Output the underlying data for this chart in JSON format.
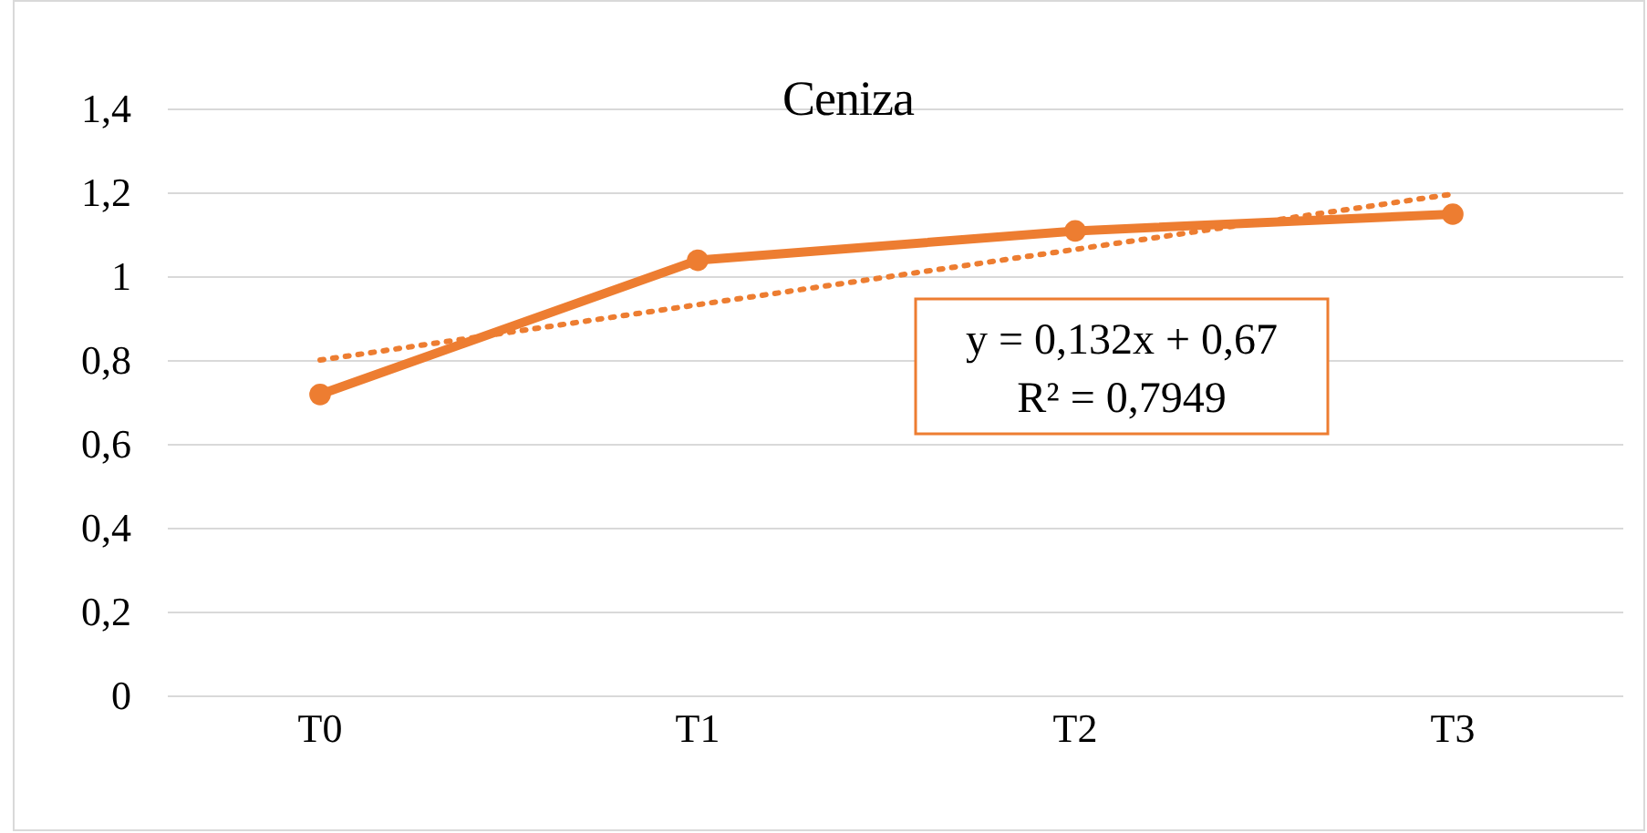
{
  "chart_data": {
    "type": "line",
    "title": "Ceniza",
    "categories": [
      "T0",
      "T1",
      "T2",
      "T3"
    ],
    "series": [
      {
        "color": "#ed7d31",
        "values": [
          0.72,
          1.04,
          1.11,
          1.15
        ],
        "marker": "circle",
        "line_style": "solid"
      },
      {
        "type": "line",
        "x": [
          "T0",
          "T1",
          "T2",
          "T3"
        ],
        "color": "#ed7d31",
        "values": [
          0.802,
          0.934,
          1.066,
          1.198
        ],
        "marker": "none",
        "line_style": "dotted"
      }
    ],
    "ylim": [
      0,
      1.4
    ],
    "yticks": [
      0,
      {
        "value": 0.2,
        "label": "0,2"
      },
      {
        "value": 0.4,
        "label": "0,4"
      },
      {
        "value": 0.6,
        "label": "0,6"
      },
      {
        "value": 0.8,
        "label": "0,8"
      },
      1,
      {
        "value": 1.2,
        "label": "1,2"
      },
      {
        "value": 1.4,
        "label": "1,4"
      }
    ],
    "grid": "y",
    "annotations": [
      "y = 0,132x + 0,67",
      "R² = 0,7949"
    ]
  }
}
